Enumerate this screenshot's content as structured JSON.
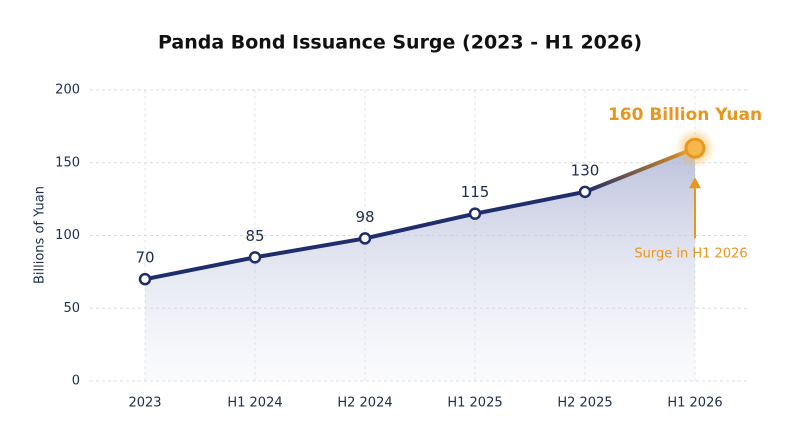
{
  "chart_data": {
    "type": "line",
    "title": "Panda Bond Issuance Surge (2023 - H1 2026)",
    "y_label": "Billions of Yuan",
    "categories": [
      "2023",
      "H1 2024",
      "H2 2024",
      "H1 2025",
      "H2 2025",
      "H1 2026"
    ],
    "values": [
      70,
      85,
      98,
      115,
      130,
      160
    ],
    "value_labels": [
      "70",
      "85",
      "98",
      "115",
      "130",
      "160 Billion Yuan"
    ],
    "color": "#1f2d6b",
    "highlight_color": "#e8961e",
    "annotation": "Surge in H1 2026",
    "ylim": [
      0,
      200
    ],
    "yticks": [
      0,
      50,
      100,
      150,
      200
    ],
    "grid": true
  }
}
